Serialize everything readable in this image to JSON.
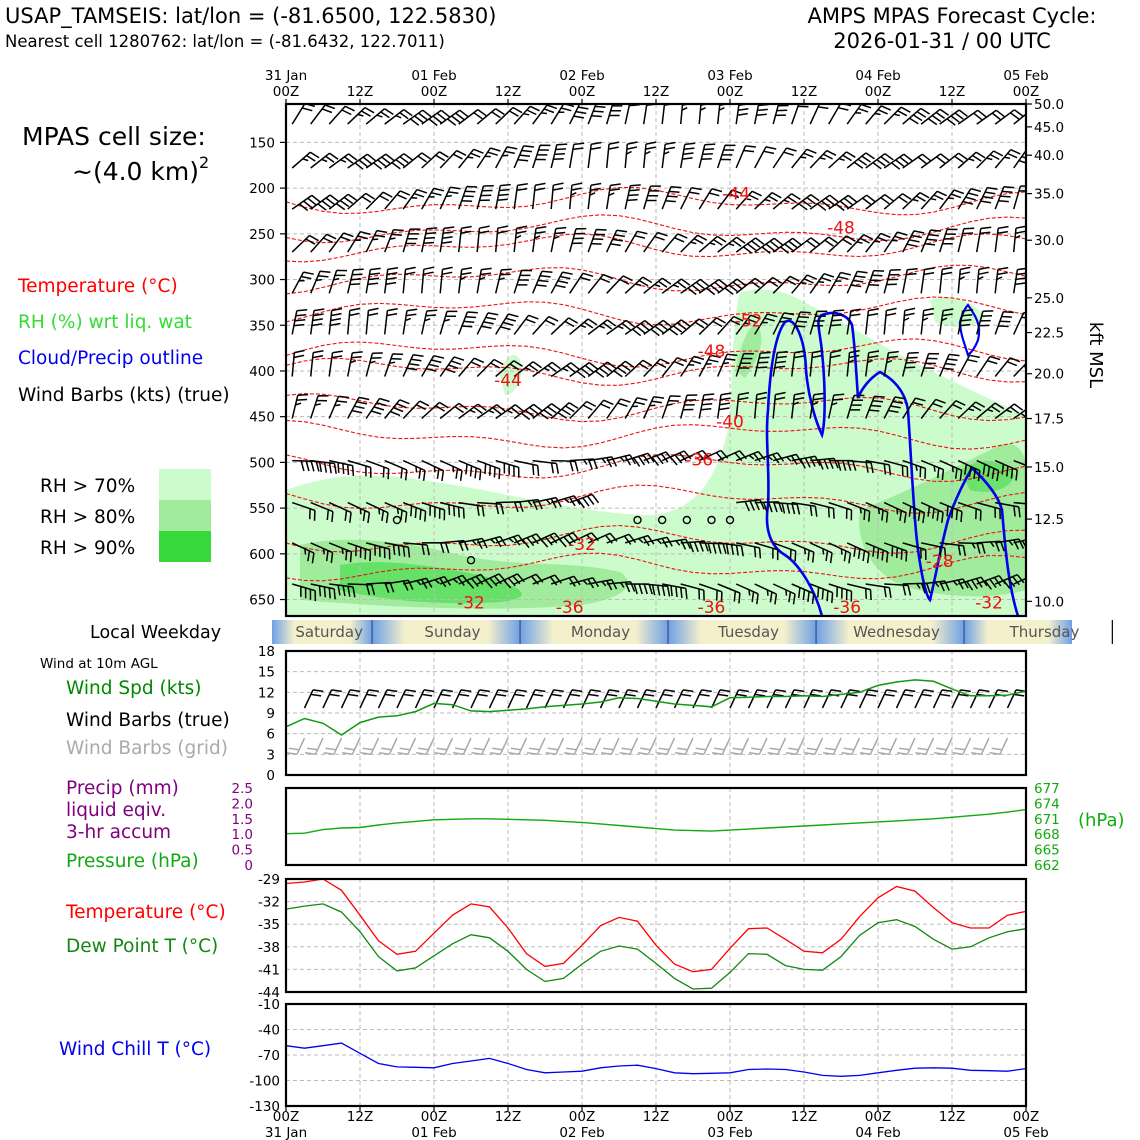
{
  "header": {
    "station_line": "USAP_TAMSEIS: lat/lon = (-81.6500, 122.5830)",
    "nearest_line": "Nearest cell 1280762: lat/lon = (-81.6432, 122.7011)",
    "model_line": "AMPS MPAS Forecast Cycle:",
    "cycle_line": "2026-01-31 / 00 UTC"
  },
  "left_legend": {
    "cell_size_label": "MPAS cell size:",
    "cell_size_value": "~(4.0 km)",
    "cell_size_exp": "2",
    "temperature": "Temperature (°C)",
    "rh": "RH (%) wrt liq. wat",
    "cloud": "Cloud/Precip outline",
    "barbs": "Wind Barbs (kts) (true)",
    "rh_levels": [
      "RH > 70%",
      "RH > 80%",
      "RH > 90%"
    ],
    "local_weekday": "Local Weekday",
    "wind_10m": "Wind at 10m AGL",
    "wind_spd": "Wind Spd (kts)",
    "barbs_true": "Wind Barbs (true)",
    "barbs_grid": "Wind Barbs (grid)",
    "precip1": "Precip (mm)",
    "precip2": "liquid eqiv.",
    "precip3": "3-hr accum",
    "pressure": "Pressure (hPa)",
    "temp_sfc": "Temperature (°C)",
    "dewpoint": "Dew Point T (°C)",
    "wind_chill": "Wind Chill T (°C)"
  },
  "colors": {
    "temperature": "#ff0000",
    "rh_label": "#33dd33",
    "rh70": "#ccfccc",
    "rh80": "#a0ec9c",
    "rh90": "#36d83c",
    "cloud": "#0000ee",
    "pressure": "#11aa11",
    "dewpoint": "#118811",
    "precip": "#800080",
    "windchill": "#0000ee",
    "windspd": "#008800",
    "weekday_day": "#f4f0cc",
    "weekday_night": "#6fa0e6"
  },
  "chart_data": [
    {
      "type": "time-height cross-section",
      "x_tick_labels": [
        "31 Jan\n00Z",
        "12Z",
        "01 Feb\n00Z",
        "12Z",
        "02 Feb\n00Z",
        "12Z",
        "03 Feb\n00Z",
        "12Z",
        "04 Feb\n00Z",
        "12Z",
        "05 Feb\n00Z"
      ],
      "x_hours": [
        0,
        12,
        24,
        36,
        48,
        60,
        72,
        84,
        96,
        108,
        120
      ],
      "pressure_ticks": [
        150,
        200,
        250,
        300,
        350,
        400,
        450,
        500,
        550,
        600,
        650
      ],
      "pressure_range_hpa": [
        108,
        668
      ],
      "kft_ticks": [
        50.0,
        45.0,
        40.0,
        35.0,
        30.0,
        25.0,
        22.5,
        20.0,
        17.5,
        15.0,
        12.5,
        10.0
      ],
      "kft_axis_label": "kft MSL",
      "temperature_contour_labels": [
        {
          "label": "-44",
          "hour": 73,
          "hpa": 206
        },
        {
          "label": "-48",
          "hour": 90,
          "hpa": 243
        },
        {
          "label": "-52",
          "hour": 75,
          "hpa": 345
        },
        {
          "label": "-48",
          "hour": 69,
          "hpa": 378
        },
        {
          "label": "-44",
          "hour": 36,
          "hpa": 410
        },
        {
          "label": "-40",
          "hour": 72,
          "hpa": 455
        },
        {
          "label": "-36",
          "hour": 67,
          "hpa": 497
        },
        {
          "label": "-32",
          "hour": 48,
          "hpa": 589
        },
        {
          "label": "-32",
          "hour": 30,
          "hpa": 653
        },
        {
          "label": "-36",
          "hour": 46,
          "hpa": 658
        },
        {
          "label": "-36",
          "hour": 69,
          "hpa": 658
        },
        {
          "label": "-36",
          "hour": 91,
          "hpa": 658
        },
        {
          "label": "-28",
          "hour": 106,
          "hpa": 608
        },
        {
          "label": "-32",
          "hour": 114,
          "hpa": 653
        }
      ]
    },
    {
      "type": "line",
      "title": "Wind at 10m AGL",
      "ylabel": "Wind Spd (kts)",
      "ylim": [
        0,
        18
      ],
      "yticks": [
        0,
        3,
        6,
        9,
        12,
        15,
        18
      ],
      "x_hours": [
        0,
        3,
        6,
        9,
        12,
        15,
        18,
        21,
        24,
        27,
        30,
        33,
        36,
        39,
        42,
        45,
        48,
        51,
        54,
        57,
        60,
        63,
        66,
        69,
        72,
        75,
        78,
        81,
        84,
        87,
        90,
        93,
        96,
        99,
        102,
        105,
        108,
        111,
        114,
        117,
        120
      ],
      "values": [
        7.0,
        8.2,
        7.5,
        5.8,
        7.6,
        8.4,
        8.6,
        9.2,
        10.4,
        10.2,
        9.3,
        9.2,
        9.4,
        9.6,
        9.9,
        10.1,
        10.3,
        10.6,
        11.2,
        11.1,
        10.7,
        10.3,
        10.1,
        9.9,
        11.2,
        11.3,
        11.4,
        11.4,
        11.5,
        11.4,
        11.7,
        12.0,
        13.0,
        13.5,
        13.8,
        13.6,
        12.5,
        11.5,
        11.5,
        11.6,
        12.2
      ]
    },
    {
      "type": "line",
      "title": "Pressure",
      "ylabel": "(hPa)",
      "ylim_hpa": [
        662,
        677
      ],
      "yticks_hpa": [
        662,
        665,
        668,
        671,
        674,
        677
      ],
      "precip_ylim_mm": [
        0,
        2.5
      ],
      "precip_yticks": [
        "0",
        "0.5",
        "1.0",
        "1.5",
        "2.0",
        "2.5"
      ],
      "x_hours": [
        0,
        3,
        6,
        9,
        12,
        15,
        18,
        21,
        24,
        27,
        30,
        33,
        36,
        39,
        42,
        45,
        48,
        51,
        54,
        57,
        60,
        63,
        66,
        69,
        72,
        75,
        78,
        81,
        84,
        87,
        90,
        93,
        96,
        99,
        102,
        105,
        108,
        111,
        114,
        117,
        120
      ],
      "values": [
        668.1,
        668.2,
        668.9,
        669.2,
        669.3,
        669.8,
        670.2,
        670.5,
        670.8,
        670.9,
        671.0,
        671.0,
        670.9,
        670.8,
        670.7,
        670.5,
        670.3,
        670.0,
        669.7,
        669.4,
        669.1,
        668.8,
        668.7,
        668.6,
        668.8,
        669.0,
        669.2,
        669.4,
        669.6,
        669.8,
        670.0,
        670.2,
        670.4,
        670.6,
        670.8,
        671.0,
        671.3,
        671.6,
        671.9,
        672.3,
        672.8
      ]
    },
    {
      "type": "line",
      "title": "Temperature / Dew Point",
      "ylim": [
        -44,
        -29
      ],
      "yticks": [
        -44,
        -41,
        -38,
        -35,
        -32,
        -29
      ],
      "x_hours": [
        0,
        3,
        6,
        9,
        12,
        15,
        18,
        21,
        24,
        27,
        30,
        33,
        36,
        39,
        42,
        45,
        48,
        51,
        54,
        57,
        60,
        63,
        66,
        69,
        72,
        75,
        78,
        81,
        84,
        87,
        90,
        93,
        96,
        99,
        102,
        105,
        108,
        111,
        114,
        117,
        120
      ],
      "series": [
        {
          "name": "Temperature (°C)",
          "values": [
            -29.6,
            -29.4,
            -29.0,
            -30.5,
            -33.8,
            -37.2,
            -39.0,
            -38.6,
            -36.2,
            -33.8,
            -32.3,
            -32.7,
            -35.5,
            -38.9,
            -40.6,
            -40.2,
            -37.8,
            -35.2,
            -34.1,
            -34.6,
            -37.8,
            -40.3,
            -41.3,
            -41.0,
            -38.2,
            -35.6,
            -35.5,
            -37.0,
            -38.6,
            -38.8,
            -37.0,
            -34.0,
            -31.5,
            -30.0,
            -30.6,
            -32.8,
            -34.8,
            -35.5,
            -35.5,
            -33.8,
            -33.3
          ]
        },
        {
          "name": "Dew Point T (°C)",
          "values": [
            -33.0,
            -32.6,
            -32.3,
            -33.4,
            -36.0,
            -39.3,
            -41.2,
            -40.8,
            -39.2,
            -37.6,
            -36.4,
            -36.8,
            -38.6,
            -41.0,
            -42.6,
            -42.2,
            -40.3,
            -38.6,
            -37.9,
            -38.3,
            -40.2,
            -42.2,
            -43.6,
            -43.5,
            -41.4,
            -38.9,
            -39.0,
            -40.5,
            -41.0,
            -41.1,
            -39.3,
            -36.5,
            -34.8,
            -34.4,
            -35.3,
            -37.0,
            -38.3,
            -38.0,
            -36.8,
            -36.0,
            -35.6
          ]
        }
      ]
    },
    {
      "type": "line",
      "title": "Wind Chill",
      "ylabel": "Wind Chill T (°C)",
      "ylim": [
        -130,
        -10
      ],
      "yticks": [
        -130,
        -100,
        -70,
        -40,
        -10
      ],
      "x_hours": [
        0,
        3,
        6,
        9,
        12,
        15,
        18,
        21,
        24,
        27,
        30,
        33,
        36,
        39,
        42,
        45,
        48,
        51,
        54,
        57,
        60,
        63,
        66,
        69,
        72,
        75,
        78,
        81,
        84,
        87,
        90,
        93,
        96,
        99,
        102,
        105,
        108,
        111,
        114,
        117,
        120
      ],
      "values": [
        -59.0,
        -62.0,
        -59.0,
        -56.0,
        -68.0,
        -80.0,
        -84.0,
        -84.5,
        -85.0,
        -80.0,
        -77.0,
        -74.0,
        -80.0,
        -87.0,
        -91.0,
        -90.0,
        -89.0,
        -85.0,
        -83.0,
        -82.0,
        -86.0,
        -91.0,
        -92.0,
        -91.5,
        -91.0,
        -87.0,
        -86.5,
        -87.0,
        -90.0,
        -94.0,
        -95.0,
        -94.0,
        -91.0,
        -88.0,
        -85.5,
        -85.0,
        -85.5,
        -88.0,
        -88.5,
        -89.0,
        -86.0
      ]
    }
  ],
  "weekdays": [
    {
      "name": "Saturday",
      "hour": 7
    },
    {
      "name": "Sunday",
      "hour": 27
    },
    {
      "name": "Monday",
      "hour": 51
    },
    {
      "name": "Tuesday",
      "hour": 75
    },
    {
      "name": "Wednesday",
      "hour": 99
    },
    {
      "name": "Thursday",
      "hour": 123
    }
  ]
}
